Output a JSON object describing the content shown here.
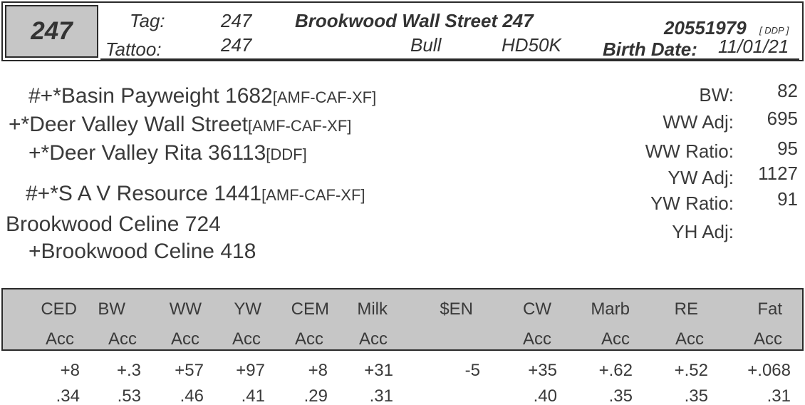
{
  "header": {
    "lot": "247",
    "tag_label": "Tag:",
    "tag_value": "247",
    "tattoo_label": "Tattoo:",
    "tattoo_value": "247",
    "name": "Brookwood Wall Street 247",
    "reg_number": "20551979",
    "reg_suffix": "[ DDP ]",
    "sex": "Bull",
    "herd_id": "HD50K",
    "birth_label": "Birth Date:",
    "birth_date": "11/01/21"
  },
  "pedigree": [
    {
      "text": "#+*Basin Payweight 1682",
      "reg": "[AMF-CAF-XF]"
    },
    {
      "text": "+*Deer Valley Wall Street",
      "reg": "[AMF-CAF-XF]"
    },
    {
      "text": "+*Deer Valley Rita 36113",
      "reg": "[DDF]"
    },
    {
      "text": "#+*S A V Resource 1441",
      "reg": "[AMF-CAF-XF]"
    },
    {
      "text": "Brookwood Celine 724",
      "reg": ""
    },
    {
      "text": "+Brookwood Celine 418",
      "reg": ""
    }
  ],
  "stats": [
    {
      "label": "BW:",
      "value": "82"
    },
    {
      "label": "WW Adj:",
      "value": "695"
    },
    {
      "label": "WW Ratio:",
      "value": "95"
    },
    {
      "label": "YW Adj:",
      "value": "1127"
    },
    {
      "label": "YW Ratio:",
      "value": "91"
    },
    {
      "label": "YH Adj:",
      "value": ""
    }
  ],
  "epd": {
    "headers": [
      "CED",
      "BW",
      "WW",
      "YW",
      "CEM",
      "Milk",
      "$EN",
      "CW",
      "Marb",
      "RE",
      "Fat"
    ],
    "acc_labels": [
      "Acc",
      "Acc",
      "Acc",
      "Acc",
      "Acc",
      "Acc",
      "",
      "Acc",
      "Acc",
      "Acc",
      "Acc"
    ],
    "values": [
      "+8",
      "+.3",
      "+57",
      "+97",
      "+8",
      "+31",
      "-5",
      "+35",
      "+.62",
      "+.52",
      "+.068"
    ],
    "accuracies": [
      ".34",
      ".53",
      ".46",
      ".41",
      ".29",
      ".31",
      "",
      ".40",
      ".35",
      ".35",
      ".31"
    ]
  },
  "colors": {
    "band": "#c6c6c6",
    "border": "#2a2a2a",
    "text": "#333333"
  }
}
